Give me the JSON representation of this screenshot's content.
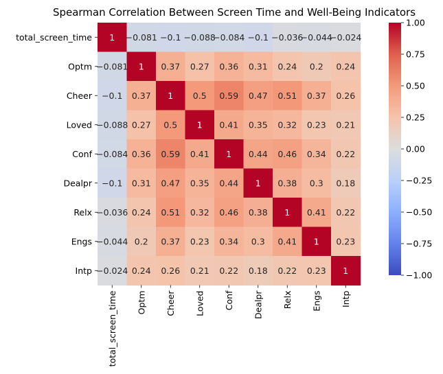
{
  "chart_data": {
    "type": "heatmap",
    "title": "Spearman Correlation Between Screen Time and Well-Being Indicators",
    "xlabel": "",
    "ylabel": "",
    "labels": [
      "total_screen_time",
      "Optm",
      "Cheer",
      "Loved",
      "Conf",
      "Dealpr",
      "Relx",
      "Engs",
      "Intp"
    ],
    "matrix": [
      [
        1,
        -0.081,
        -0.1,
        -0.088,
        -0.084,
        -0.1,
        -0.036,
        -0.044,
        -0.024
      ],
      [
        -0.081,
        1,
        0.37,
        0.27,
        0.36,
        0.31,
        0.24,
        0.2,
        0.24
      ],
      [
        -0.1,
        0.37,
        1,
        0.5,
        0.59,
        0.47,
        0.51,
        0.37,
        0.26
      ],
      [
        -0.088,
        0.27,
        0.5,
        1,
        0.41,
        0.35,
        0.32,
        0.23,
        0.21
      ],
      [
        -0.084,
        0.36,
        0.59,
        0.41,
        1,
        0.44,
        0.46,
        0.34,
        0.22
      ],
      [
        -0.1,
        0.31,
        0.47,
        0.35,
        0.44,
        1,
        0.38,
        0.3,
        0.18
      ],
      [
        -0.036,
        0.24,
        0.51,
        0.32,
        0.46,
        0.38,
        1,
        0.41,
        0.22
      ],
      [
        -0.044,
        0.2,
        0.37,
        0.23,
        0.34,
        0.3,
        0.41,
        1,
        0.23
      ],
      [
        -0.024,
        0.24,
        0.26,
        0.21,
        0.22,
        0.18,
        0.22,
        0.23,
        1
      ]
    ],
    "colormap": "coolwarm",
    "colorbar": {
      "range": [
        -1.0,
        1.0
      ],
      "ticks": [
        "1.00",
        "0.75",
        "0.50",
        "0.25",
        "0.00",
        "−0.25",
        "−0.50",
        "−0.75",
        "−1.00"
      ]
    },
    "annotated": true,
    "grid": false
  }
}
